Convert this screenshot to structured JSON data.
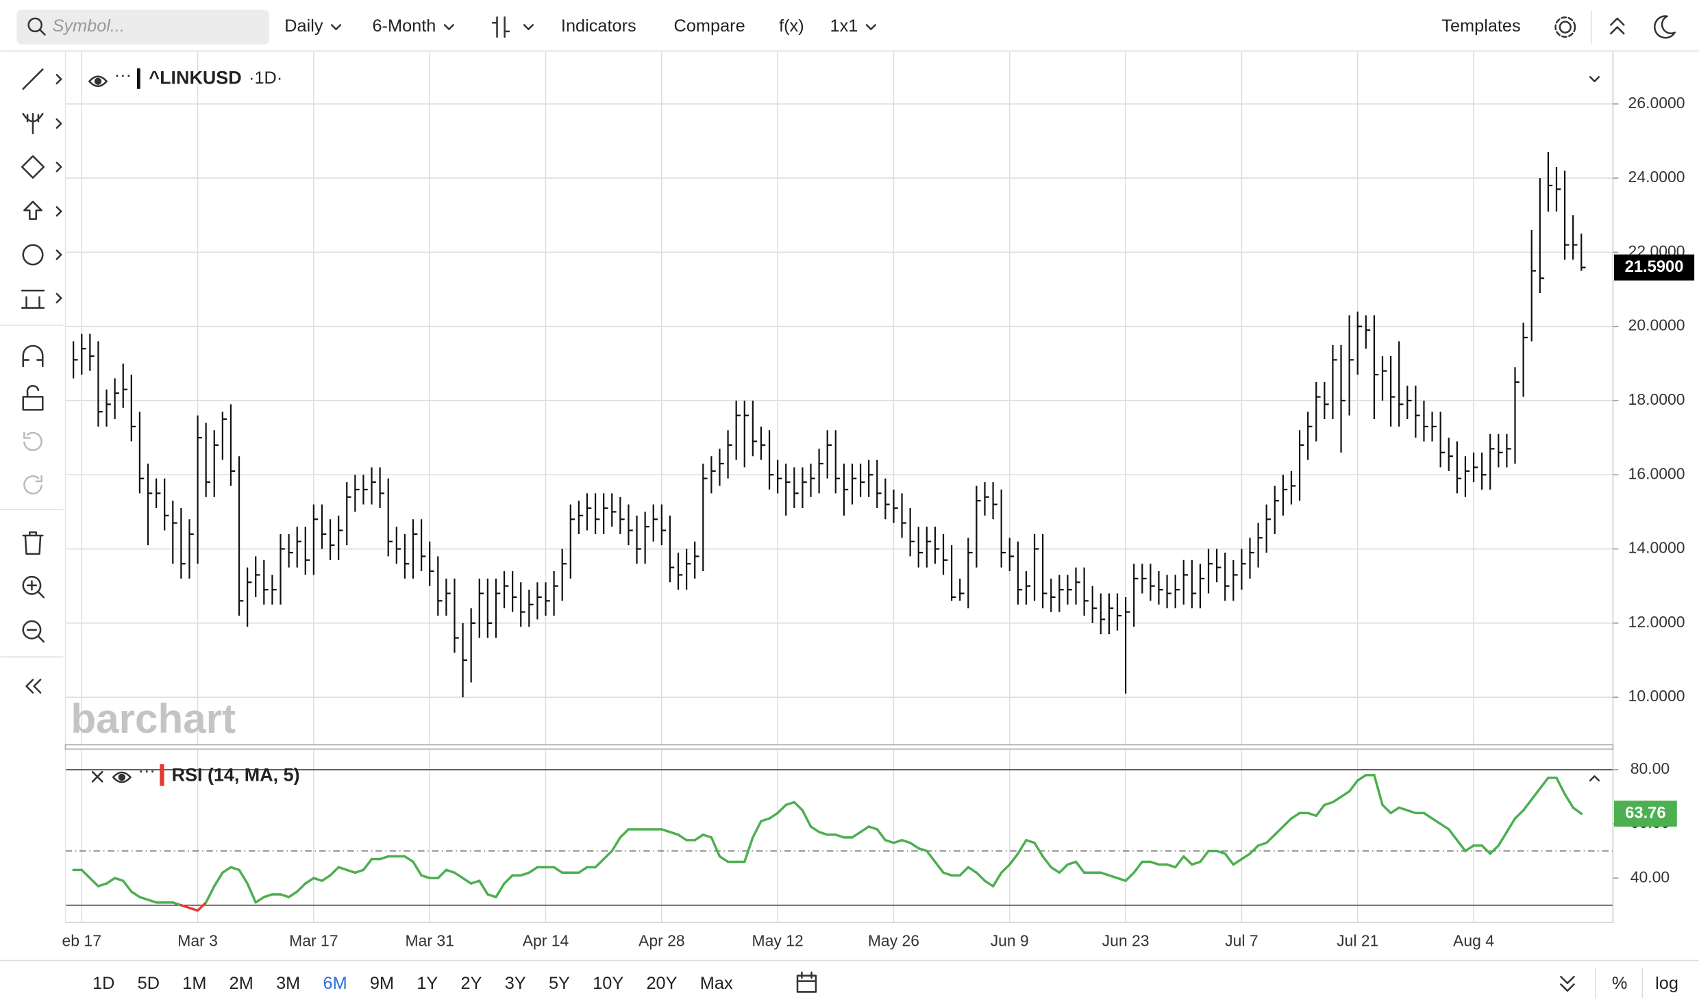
{
  "ui": {
    "search_placeholder": "Symbol...",
    "toolbar": [
      "Daily",
      "6-Month",
      "Indicators",
      "Compare",
      "f(x)",
      "1x1"
    ],
    "templates": "Templates",
    "legend": {
      "symbol": "^LINKUSD",
      "interval": "·1D·"
    },
    "watermark": "barchart",
    "range_buttons": [
      {
        "label": "1D"
      },
      {
        "label": "5D"
      },
      {
        "label": "1M"
      },
      {
        "label": "2M"
      },
      {
        "label": "3M"
      },
      {
        "label": "6M",
        "active": true
      },
      {
        "label": "9M"
      },
      {
        "label": "1Y"
      },
      {
        "label": "2Y"
      },
      {
        "label": "3Y"
      },
      {
        "label": "5Y"
      },
      {
        "label": "10Y"
      },
      {
        "label": "20Y"
      },
      {
        "label": "Max"
      }
    ],
    "percent": "%",
    "log": "log"
  },
  "chart_data": {
    "type": "ohlc",
    "color": "#111111",
    "grid": true,
    "categories": [
      null,
      "eb 17",
      null,
      null,
      null,
      null,
      null,
      null,
      null,
      null,
      null,
      null,
      null,
      null,
      null,
      "Mar 3",
      null,
      null,
      null,
      null,
      null,
      null,
      null,
      null,
      null,
      null,
      null,
      null,
      null,
      "Mar 17",
      null,
      null,
      null,
      null,
      null,
      null,
      null,
      null,
      null,
      null,
      null,
      null,
      null,
      "Mar 31",
      null,
      null,
      null,
      null,
      null,
      null,
      null,
      null,
      null,
      null,
      null,
      null,
      null,
      "Apr 14",
      null,
      null,
      null,
      null,
      null,
      null,
      null,
      null,
      null,
      null,
      null,
      null,
      null,
      "Apr 28",
      null,
      null,
      null,
      null,
      null,
      null,
      null,
      null,
      null,
      null,
      null,
      null,
      null,
      "May 12",
      null,
      null,
      null,
      null,
      null,
      null,
      null,
      null,
      null,
      null,
      null,
      null,
      null,
      "May 26",
      null,
      null,
      null,
      null,
      null,
      null,
      null,
      null,
      null,
      null,
      null,
      null,
      null,
      "Jun 9",
      null,
      null,
      null,
      null,
      null,
      null,
      null,
      null,
      null,
      null,
      null,
      null,
      null,
      "Jun 23",
      null,
      null,
      null,
      null,
      null,
      null,
      null,
      null,
      null,
      null,
      null,
      null,
      null,
      "Jul 7",
      null,
      null,
      null,
      null,
      null,
      null,
      null,
      null,
      null,
      null,
      null,
      null,
      null,
      "Jul 21",
      null,
      null,
      null,
      null,
      null,
      null,
      null,
      null,
      null,
      null,
      null,
      null,
      null,
      "Aug 4",
      null,
      null,
      null,
      null,
      null,
      null,
      null,
      null,
      null,
      null,
      null,
      null,
      null
    ],
    "high": [
      19.6,
      19.8,
      19.8,
      19.6,
      18.3,
      18.6,
      19.0,
      18.7,
      17.7,
      16.3,
      15.9,
      15.9,
      15.3,
      15.1,
      14.8,
      17.6,
      17.4,
      17.2,
      17.7,
      17.9,
      16.5,
      13.5,
      13.8,
      13.7,
      13.3,
      14.4,
      14.4,
      14.6,
      14.6,
      15.2,
      15.2,
      14.8,
      14.9,
      15.8,
      16.0,
      16.0,
      16.2,
      16.2,
      15.9,
      14.6,
      14.4,
      14.8,
      14.8,
      14.2,
      13.8,
      13.2,
      13.2,
      12.0,
      12.4,
      13.2,
      13.2,
      13.2,
      13.4,
      13.4,
      13.1,
      12.9,
      13.1,
      13.1,
      13.4,
      14.0,
      15.2,
      15.3,
      15.5,
      15.5,
      15.5,
      15.5,
      15.4,
      15.2,
      14.9,
      15.0,
      15.2,
      15.2,
      14.9,
      13.9,
      14.0,
      14.2,
      16.3,
      16.5,
      16.7,
      17.2,
      18.0,
      18.0,
      18.0,
      17.3,
      17.2,
      16.4,
      16.3,
      16.2,
      16.2,
      16.3,
      16.7,
      17.2,
      17.2,
      16.3,
      16.3,
      16.3,
      16.4,
      16.4,
      15.9,
      15.6,
      15.5,
      15.1,
      14.6,
      14.6,
      14.6,
      14.4,
      14.1,
      13.2,
      14.3,
      15.7,
      15.8,
      15.8,
      15.6,
      14.3,
      14.2,
      13.4,
      14.4,
      14.4,
      13.2,
      13.3,
      13.3,
      13.5,
      13.5,
      13.0,
      12.8,
      12.8,
      12.8,
      12.7,
      13.6,
      13.6,
      13.6,
      13.4,
      13.3,
      13.3,
      13.7,
      13.7,
      13.6,
      14.0,
      14.0,
      13.9,
      13.7,
      14.0,
      14.3,
      14.7,
      15.2,
      15.7,
      16.0,
      16.1,
      17.2,
      17.7,
      18.5,
      18.5,
      19.5,
      19.5,
      20.3,
      20.4,
      20.3,
      20.3,
      19.2,
      19.2,
      19.6,
      18.4,
      18.4,
      18.0,
      17.7,
      17.7,
      17.0,
      16.9,
      16.5,
      16.6,
      16.6,
      17.1,
      17.1,
      17.1,
      18.9,
      20.1,
      22.6,
      24.0,
      24.7,
      24.3,
      24.2,
      23.0,
      22.5
    ],
    "low": [
      18.6,
      18.7,
      18.8,
      17.3,
      17.3,
      17.5,
      17.8,
      16.9,
      15.5,
      14.1,
      15.1,
      14.5,
      13.6,
      13.2,
      13.2,
      13.6,
      15.4,
      15.4,
      16.4,
      15.7,
      12.2,
      11.9,
      12.7,
      12.5,
      12.5,
      12.5,
      13.5,
      13.5,
      13.3,
      13.3,
      14.0,
      13.7,
      13.7,
      14.1,
      15.0,
      15.2,
      15.2,
      15.1,
      13.8,
      13.6,
      13.2,
      13.2,
      13.4,
      13.0,
      12.2,
      12.2,
      11.2,
      10.0,
      10.4,
      11.6,
      11.6,
      11.6,
      12.4,
      12.3,
      11.9,
      11.9,
      12.1,
      12.2,
      12.2,
      12.6,
      13.2,
      14.4,
      14.5,
      14.4,
      14.4,
      14.6,
      14.4,
      14.1,
      13.6,
      13.6,
      14.2,
      14.1,
      13.1,
      12.9,
      12.9,
      13.2,
      13.4,
      15.5,
      15.7,
      15.9,
      16.4,
      16.2,
      16.5,
      16.4,
      15.6,
      15.5,
      14.9,
      15.1,
      15.1,
      15.4,
      15.5,
      15.9,
      15.5,
      14.9,
      15.2,
      15.4,
      15.4,
      15.1,
      14.8,
      14.7,
      14.3,
      13.8,
      13.5,
      13.5,
      13.6,
      13.3,
      12.6,
      12.6,
      12.4,
      13.5,
      14.9,
      14.8,
      13.5,
      13.4,
      12.5,
      12.5,
      12.6,
      12.4,
      12.3,
      12.3,
      12.5,
      12.5,
      12.2,
      12.0,
      11.7,
      11.7,
      11.8,
      10.1,
      11.9,
      12.8,
      12.6,
      12.5,
      12.4,
      12.4,
      12.5,
      12.4,
      12.4,
      12.8,
      13.1,
      12.6,
      12.6,
      12.9,
      13.2,
      13.5,
      13.9,
      14.4,
      14.9,
      15.2,
      15.3,
      16.4,
      16.9,
      17.5,
      17.5,
      16.6,
      17.6,
      18.7,
      19.4,
      17.5,
      18.0,
      17.3,
      17.3,
      17.5,
      17.0,
      16.9,
      16.9,
      16.2,
      16.1,
      15.5,
      15.4,
      15.8,
      15.6,
      15.6,
      16.2,
      16.2,
      16.3,
      18.1,
      19.6,
      20.9,
      23.1,
      23.1,
      21.8,
      21.8,
      21.5
    ],
    "close": [
      19.1,
      19.4,
      19.2,
      17.7,
      17.9,
      18.2,
      18.3,
      17.3,
      15.9,
      15.5,
      15.5,
      14.9,
      14.7,
      13.6,
      14.4,
      17.0,
      15.8,
      16.8,
      17.5,
      16.1,
      12.6,
      13.1,
      13.3,
      12.9,
      12.9,
      14.0,
      13.9,
      14.2,
      13.7,
      14.8,
      14.4,
      14.1,
      14.5,
      15.4,
      15.6,
      15.6,
      15.8,
      15.5,
      14.2,
      14.0,
      13.6,
      14.4,
      13.8,
      13.4,
      12.6,
      12.8,
      11.6,
      11.0,
      12.0,
      12.8,
      12.0,
      12.8,
      13.0,
      12.7,
      12.3,
      12.5,
      12.7,
      12.6,
      13.0,
      13.6,
      14.8,
      14.9,
      15.1,
      14.8,
      15.1,
      15.0,
      14.8,
      14.5,
      14.0,
      14.6,
      14.8,
      14.5,
      13.5,
      13.3,
      13.6,
      13.8,
      15.9,
      16.1,
      16.3,
      16.8,
      17.6,
      17.6,
      16.9,
      16.8,
      16.0,
      15.9,
      15.8,
      15.5,
      15.8,
      15.9,
      16.3,
      16.8,
      15.9,
      15.6,
      15.9,
      15.8,
      16.0,
      15.5,
      15.2,
      15.1,
      14.7,
      14.2,
      13.9,
      14.2,
      14.0,
      13.7,
      12.7,
      12.8,
      13.9,
      15.3,
      15.4,
      15.2,
      13.9,
      13.8,
      12.9,
      13.0,
      14.0,
      12.8,
      12.7,
      12.9,
      12.9,
      13.1,
      12.6,
      12.4,
      12.1,
      12.4,
      12.2,
      12.3,
      13.2,
      13.2,
      13.0,
      12.9,
      12.8,
      12.9,
      13.3,
      12.8,
      13.2,
      13.6,
      13.5,
      13.0,
      13.3,
      13.6,
      13.9,
      14.3,
      14.8,
      15.3,
      15.6,
      15.7,
      16.8,
      17.3,
      18.1,
      17.9,
      19.1,
      18.0,
      19.1,
      20.0,
      19.9,
      18.7,
      18.8,
      18.1,
      17.9,
      18.0,
      17.6,
      17.3,
      17.3,
      16.6,
      16.5,
      15.9,
      16.1,
      16.2,
      16.0,
      16.7,
      16.6,
      16.7,
      18.5,
      19.7,
      21.5,
      21.3,
      23.8,
      23.7,
      22.2,
      22.2,
      21.59
    ],
    "last_label": "21.5900",
    "ylim": [
      8.69,
      27.4
    ],
    "yticks": [
      {
        "value": 10,
        "label": "10.0000"
      },
      {
        "value": 12,
        "label": "12.0000"
      },
      {
        "value": 14,
        "label": "14.0000"
      },
      {
        "value": 16,
        "label": "16.0000"
      },
      {
        "value": 18,
        "label": "18.0000"
      },
      {
        "value": 20,
        "label": "20.0000"
      },
      {
        "value": 22,
        "label": "22.0000"
      },
      {
        "value": 24,
        "label": "24.0000"
      },
      {
        "value": 26,
        "label": "26.0000"
      }
    ],
    "rsi": {
      "title": "RSI (14, MA, 5)",
      "color": "#4caf50",
      "oversold_color": "#e53935",
      "last_label": "63.76",
      "values": [
        43,
        43,
        40,
        37,
        38,
        40,
        39,
        35,
        33,
        32,
        31,
        31,
        31,
        30,
        29,
        28,
        31,
        37,
        42,
        44,
        43,
        38,
        31,
        33,
        34,
        34,
        33,
        35,
        38,
        40,
        39,
        41,
        44,
        43,
        42,
        43,
        47,
        47,
        48,
        48,
        48,
        46,
        41,
        40,
        40,
        43,
        42,
        40,
        38,
        39,
        34,
        33,
        38,
        41,
        41,
        42,
        44,
        44,
        44,
        42,
        42,
        42,
        44,
        44,
        47,
        50,
        55,
        58,
        58,
        58,
        58,
        58,
        57,
        56,
        54,
        54,
        56,
        55,
        48,
        46,
        46,
        46,
        55,
        61,
        62,
        64,
        67,
        68,
        65,
        59,
        57,
        56,
        56,
        55,
        55,
        57,
        59,
        58,
        54,
        53,
        54,
        53,
        51,
        50,
        46,
        42,
        41,
        41,
        44,
        42,
        39,
        37,
        42,
        45,
        49,
        54,
        53,
        48,
        44,
        42,
        45,
        46,
        42,
        42,
        42,
        41,
        40,
        39,
        42,
        46,
        46,
        45,
        45,
        44,
        48,
        45,
        46,
        50,
        50,
        49,
        45,
        47,
        49,
        52,
        53,
        56,
        59,
        62,
        64,
        64,
        63,
        67,
        68,
        70,
        72,
        76,
        78,
        78,
        67,
        64,
        66,
        65,
        64,
        64,
        62,
        60,
        58,
        54,
        50,
        52,
        52,
        49,
        52,
        57,
        62,
        65,
        69,
        73,
        77,
        77,
        71,
        66,
        63.76
      ],
      "levels": [
        80,
        50,
        30
      ],
      "ylim": [
        23.6,
        87.6
      ],
      "yticks": [
        {
          "value": 80,
          "label": "80.00"
        },
        {
          "value": 60,
          "label": "60.00"
        },
        {
          "value": 40,
          "label": "40.00"
        }
      ]
    }
  }
}
